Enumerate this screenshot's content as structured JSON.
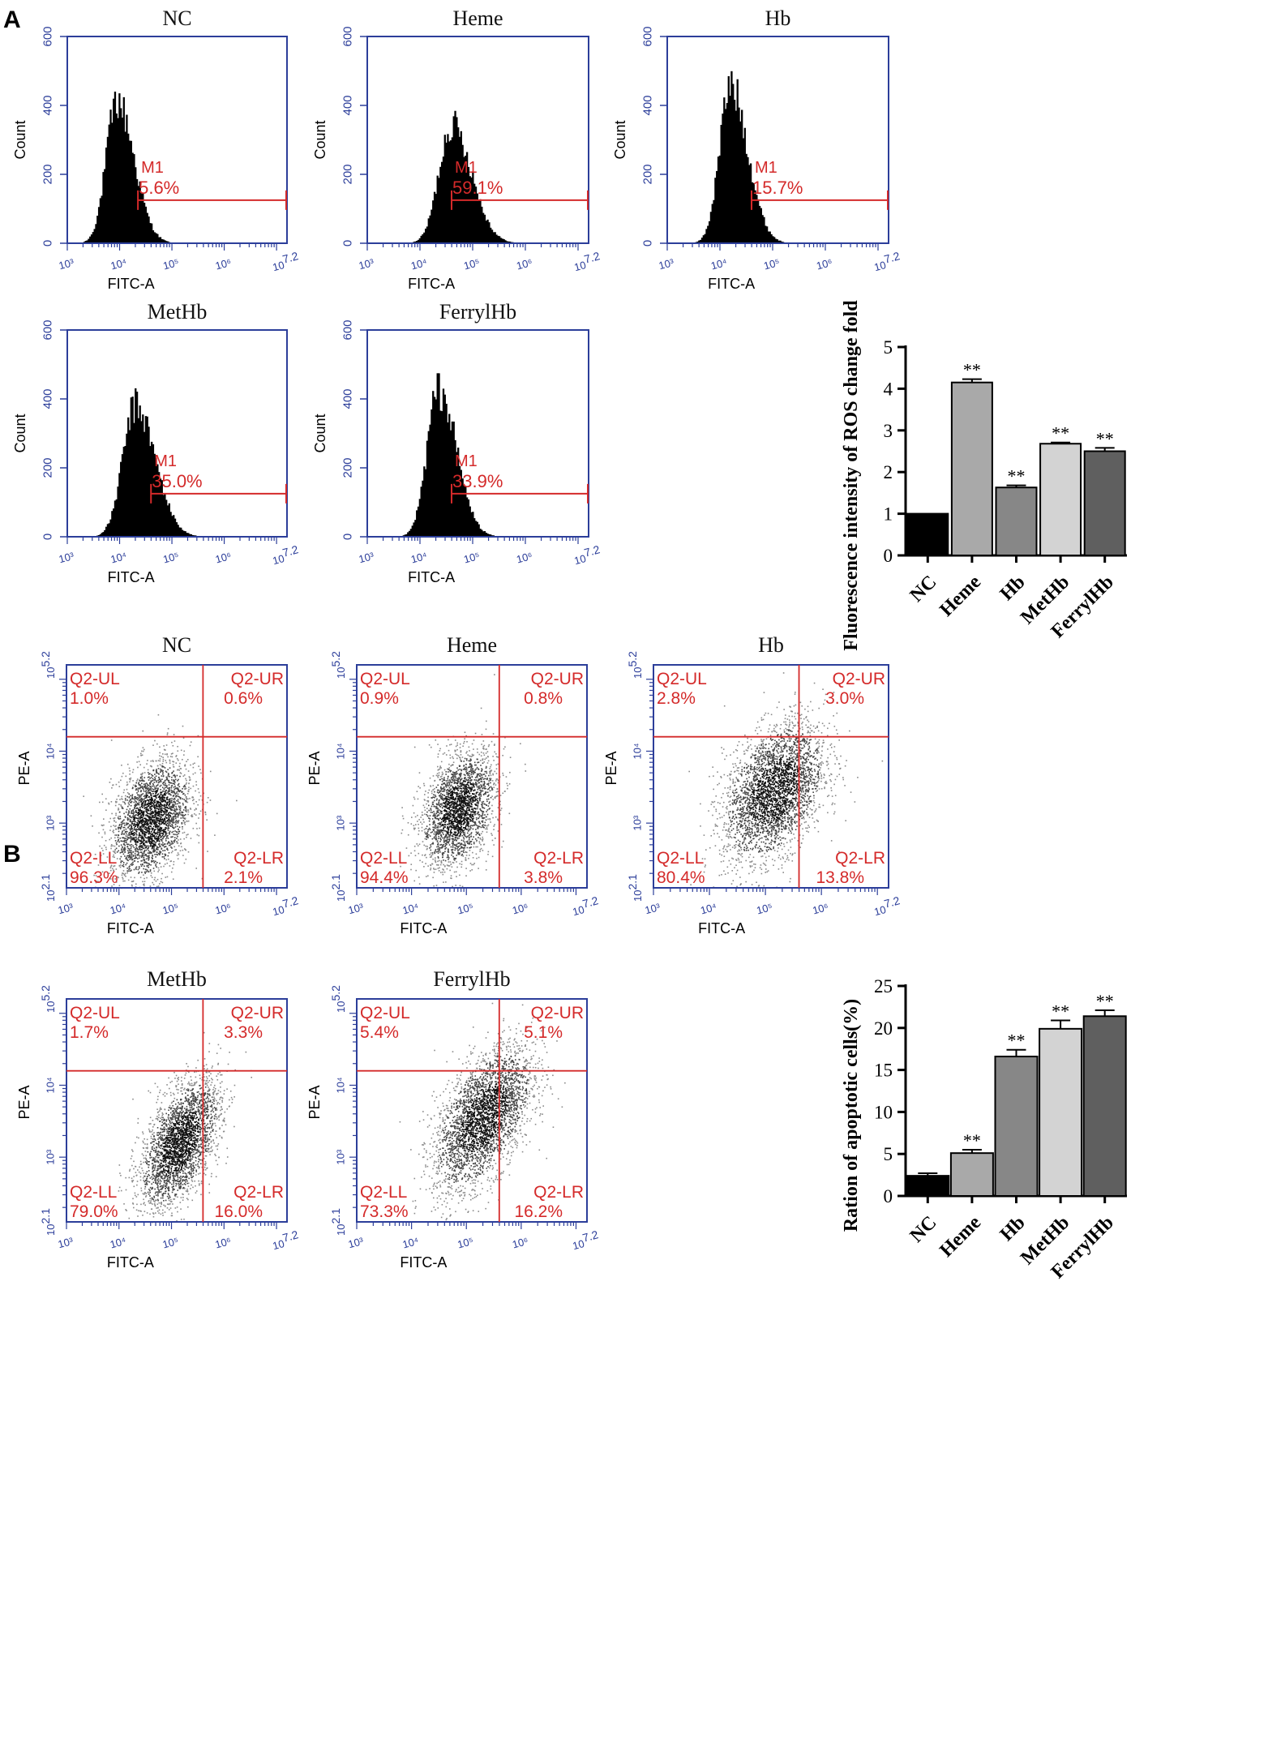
{
  "panel_labels": [
    "A",
    "B"
  ],
  "chart_data": [
    {
      "type": "histogram",
      "panel": "A",
      "title": "NC",
      "xlabel": "FITC-A",
      "ylabel": "Count",
      "xticks": [
        "10³",
        "10⁴",
        "10⁵",
        "10⁶",
        "10^7.2"
      ],
      "xlim_log10": [
        3,
        7.2
      ],
      "yticks": [
        "0",
        "200",
        "400",
        "600"
      ],
      "ylim": [
        0,
        600
      ],
      "gate": {
        "name": "M1",
        "percent": "5.6%",
        "start_log10": 4.35,
        "end_log10": 7.2,
        "level": 125
      },
      "peak": {
        "log10": 3.95,
        "count": 410,
        "width": 0.26
      }
    },
    {
      "type": "histogram",
      "panel": "A",
      "title": "Heme",
      "xlabel": "FITC-A",
      "ylabel": "Count",
      "xticks": [
        "10³",
        "10⁴",
        "10⁵",
        "10⁶",
        "10^7.2"
      ],
      "xlim_log10": [
        3,
        7.2
      ],
      "yticks": [
        "0",
        "200",
        "400",
        "600"
      ],
      "ylim": [
        0,
        600
      ],
      "gate": {
        "name": "M1",
        "percent": "59.1%",
        "start_log10": 4.6,
        "end_log10": 7.2,
        "level": 125
      },
      "peak": {
        "log10": 4.6,
        "count": 345,
        "width": 0.3
      }
    },
    {
      "type": "histogram",
      "panel": "A",
      "title": "Hb",
      "xlabel": "FITC-A",
      "ylabel": "Count",
      "xticks": [
        "10³",
        "10⁴",
        "10⁵",
        "10⁶",
        "10^7.2"
      ],
      "xlim_log10": [
        3,
        7.2
      ],
      "yticks": [
        "0",
        "200",
        "400",
        "600"
      ],
      "ylim": [
        0,
        600
      ],
      "gate": {
        "name": "M1",
        "percent": "15.7%",
        "start_log10": 4.6,
        "end_log10": 7.2,
        "level": 125
      },
      "peak": {
        "log10": 4.2,
        "count": 455,
        "width": 0.26
      }
    },
    {
      "type": "histogram",
      "panel": "A",
      "title": "MetHb",
      "xlabel": "FITC-A",
      "ylabel": "Count",
      "xticks": [
        "10³",
        "10⁴",
        "10⁵",
        "10⁶",
        "10^7.2"
      ],
      "xlim_log10": [
        3,
        7.2
      ],
      "yticks": [
        "0",
        "200",
        "400",
        "600"
      ],
      "ylim": [
        0,
        600
      ],
      "gate": {
        "name": "M1",
        "percent": "35.0%",
        "start_log10": 4.6,
        "end_log10": 7.2,
        "level": 125
      },
      "peak": {
        "log10": 4.3,
        "count": 380,
        "width": 0.3
      }
    },
    {
      "type": "histogram",
      "panel": "A",
      "title": "FerrylHb",
      "xlabel": "FITC-A",
      "ylabel": "Count",
      "xticks": [
        "10³",
        "10⁴",
        "10⁵",
        "10⁶",
        "10^7.2"
      ],
      "xlim_log10": [
        3,
        7.2
      ],
      "yticks": [
        "0",
        "200",
        "400",
        "600"
      ],
      "ylim": [
        0,
        600
      ],
      "gate": {
        "name": "M1",
        "percent": "33.9%",
        "start_log10": 4.6,
        "end_log10": 7.2,
        "level": 125
      },
      "peak": {
        "log10": 4.35,
        "count": 425,
        "width": 0.27
      }
    },
    {
      "type": "bar",
      "panel": "A",
      "categories": [
        "NC",
        "Heme",
        "Hb",
        "MetHb",
        "FerrylHb"
      ],
      "values": [
        1.0,
        4.15,
        1.63,
        2.68,
        2.5
      ],
      "errors": [
        0,
        0.08,
        0.05,
        0.03,
        0.08
      ],
      "significance": [
        "",
        "**",
        "**",
        "**",
        "**"
      ],
      "colors": [
        "#000000",
        "#a9a9a9",
        "#878787",
        "#d3d3d3",
        "#5f5f5f"
      ],
      "ylabel": "Fluorescence intensity of ROS change fold",
      "ylim": [
        0,
        5
      ],
      "yticks": [
        "0",
        "1",
        "2",
        "3",
        "4",
        "5"
      ]
    },
    {
      "type": "scatter",
      "panel": "B",
      "title": "NC",
      "xlabel": "FITC-A",
      "ylabel": "PE-A",
      "xticks": [
        "10³",
        "10⁴",
        "10⁵",
        "10⁶",
        "10^7.2"
      ],
      "xlim_log10": [
        3,
        7.2
      ],
      "yticks": [
        "10^2.1",
        "10³",
        "10⁴",
        "10^5.2"
      ],
      "ylim_log10": [
        2.1,
        5.2
      ],
      "quadrant_x_log10": 5.6,
      "quadrant_y_log10": 4.2,
      "quadrants": {
        "UL": {
          "name": "Q2-UL",
          "value": "1.0%"
        },
        "UR": {
          "name": "Q2-UR",
          "value": "0.6%"
        },
        "LL": {
          "name": "Q2-LL",
          "value": "96.3%"
        },
        "LR": {
          "name": "Q2-LR",
          "value": "2.1%"
        }
      },
      "cluster": {
        "x_log10": 4.6,
        "y_log10": 3.05,
        "sx": 0.38,
        "sy": 0.42,
        "rho": 0.35,
        "n": 2600
      }
    },
    {
      "type": "scatter",
      "panel": "B",
      "title": "Heme",
      "xlabel": "FITC-A",
      "ylabel": "PE-A",
      "xticks": [
        "10³",
        "10⁴",
        "10⁵",
        "10⁶",
        "10^7.2"
      ],
      "xlim_log10": [
        3,
        7.2
      ],
      "yticks": [
        "10^2.1",
        "10³",
        "10⁴",
        "10^5.2"
      ],
      "ylim_log10": [
        2.1,
        5.2
      ],
      "quadrant_x_log10": 5.6,
      "quadrant_y_log10": 4.2,
      "quadrants": {
        "UL": {
          "name": "Q2-UL",
          "value": "0.9%"
        },
        "UR": {
          "name": "Q2-UR",
          "value": "0.8%"
        },
        "LL": {
          "name": "Q2-LL",
          "value": "94.4%"
        },
        "LR": {
          "name": "Q2-LR",
          "value": "3.8%"
        }
      },
      "cluster": {
        "x_log10": 4.85,
        "y_log10": 3.2,
        "sx": 0.34,
        "sy": 0.4,
        "rho": 0.35,
        "n": 2400
      }
    },
    {
      "type": "scatter",
      "panel": "B",
      "title": "Hb",
      "xlabel": "FITC-A",
      "ylabel": "PE-A",
      "xticks": [
        "10³",
        "10⁴",
        "10⁵",
        "10⁶",
        "10^7.2"
      ],
      "xlim_log10": [
        3,
        7.2
      ],
      "yticks": [
        "10^2.1",
        "10³",
        "10⁴",
        "10^5.2"
      ],
      "ylim_log10": [
        2.1,
        5.2
      ],
      "quadrant_x_log10": 5.6,
      "quadrant_y_log10": 4.2,
      "quadrants": {
        "UL": {
          "name": "Q2-UL",
          "value": "2.8%"
        },
        "UR": {
          "name": "Q2-UR",
          "value": "3.0%"
        },
        "LL": {
          "name": "Q2-LL",
          "value": "80.4%"
        },
        "LR": {
          "name": "Q2-LR",
          "value": "13.8%"
        }
      },
      "cluster": {
        "x_log10": 5.15,
        "y_log10": 3.45,
        "sx": 0.45,
        "sy": 0.48,
        "rho": 0.4,
        "n": 3000
      }
    },
    {
      "type": "scatter",
      "panel": "B",
      "title": "MetHb",
      "xlabel": "FITC-A",
      "ylabel": "PE-A",
      "xticks": [
        "10³",
        "10⁴",
        "10⁵",
        "10⁶",
        "10^7.2"
      ],
      "xlim_log10": [
        3,
        7.2
      ],
      "yticks": [
        "10^2.1",
        "10³",
        "10⁴",
        "10^5.2"
      ],
      "ylim_log10": [
        2.1,
        5.2
      ],
      "quadrant_x_log10": 5.6,
      "quadrant_y_log10": 4.2,
      "quadrants": {
        "UL": {
          "name": "Q2-UL",
          "value": "1.7%"
        },
        "UR": {
          "name": "Q2-UR",
          "value": "3.3%"
        },
        "LL": {
          "name": "Q2-LL",
          "value": "79.0%"
        },
        "LR": {
          "name": "Q2-LR",
          "value": "16.0%"
        }
      },
      "cluster": {
        "x_log10": 5.15,
        "y_log10": 3.2,
        "sx": 0.38,
        "sy": 0.45,
        "rho": 0.55,
        "n": 2700
      }
    },
    {
      "type": "scatter",
      "panel": "B",
      "title": "FerrylHb",
      "xlabel": "FITC-A",
      "ylabel": "PE-A",
      "xticks": [
        "10³",
        "10⁴",
        "10⁵",
        "10⁶",
        "10^7.2"
      ],
      "xlim_log10": [
        3,
        7.2
      ],
      "yticks": [
        "10^2.1",
        "10³",
        "10⁴",
        "10^5.2"
      ],
      "ylim_log10": [
        2.1,
        5.2
      ],
      "quadrant_x_log10": 5.6,
      "quadrant_y_log10": 4.2,
      "quadrants": {
        "UL": {
          "name": "Q2-UL",
          "value": "5.4%"
        },
        "UR": {
          "name": "Q2-UR",
          "value": "5.1%"
        },
        "LL": {
          "name": "Q2-LL",
          "value": "73.3%"
        },
        "LR": {
          "name": "Q2-LR",
          "value": "16.2%"
        }
      },
      "cluster": {
        "x_log10": 5.3,
        "y_log10": 3.55,
        "sx": 0.45,
        "sy": 0.5,
        "rho": 0.55,
        "n": 3000
      }
    },
    {
      "type": "bar",
      "panel": "B",
      "categories": [
        "NC",
        "Heme",
        "Hb",
        "MetHb",
        "FerrylHb"
      ],
      "values": [
        2.4,
        5.1,
        16.6,
        19.9,
        21.4
      ],
      "errors": [
        0.3,
        0.4,
        0.8,
        1.0,
        0.7
      ],
      "significance": [
        "",
        "**",
        "**",
        "**",
        "**"
      ],
      "colors": [
        "#000000",
        "#a9a9a9",
        "#878787",
        "#d3d3d3",
        "#5f5f5f"
      ],
      "ylabel": "Ration of apoptotic cells(%)",
      "ylim": [
        0,
        25
      ],
      "yticks": [
        "0",
        "5",
        "10",
        "15",
        "20",
        "25"
      ]
    }
  ]
}
